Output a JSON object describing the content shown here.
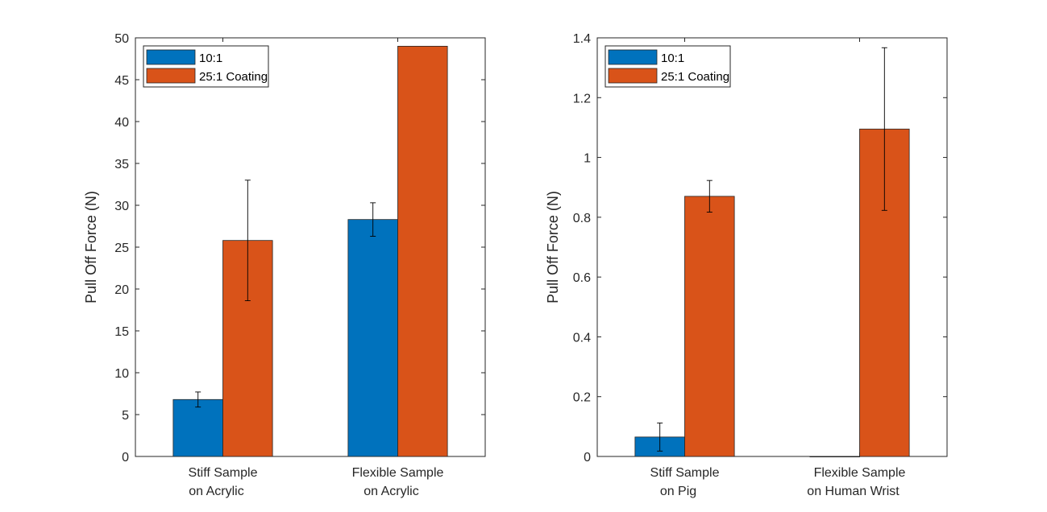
{
  "chart_data": [
    {
      "type": "bar",
      "title": "",
      "xlabel": "",
      "ylabel": "Pull Off Force (N)",
      "ylim": [
        0,
        50
      ],
      "yticks": [
        0,
        5,
        10,
        15,
        20,
        25,
        30,
        35,
        40,
        45,
        50
      ],
      "ytick_labels": [
        "0",
        "5",
        "10",
        "15",
        "20",
        "25",
        "30",
        "35",
        "40",
        "45",
        "50"
      ],
      "categories": [
        [
          "Stiff Sample",
          "on Acrylic"
        ],
        [
          "Flexible Sample",
          "on Acrylic"
        ]
      ],
      "series": [
        {
          "name": "10:1",
          "color": "#0072BD",
          "values": [
            6.8,
            28.3
          ],
          "errors": [
            0.9,
            2.0
          ]
        },
        {
          "name": "25:1 Coating",
          "color": "#D95319",
          "values": [
            25.8,
            49.0
          ],
          "errors": [
            7.2,
            0.0
          ]
        }
      ],
      "legend": "top-left",
      "grid": false
    },
    {
      "type": "bar",
      "title": "",
      "xlabel": "",
      "ylabel": "Pull Off Force (N)",
      "ylim": [
        0,
        1.4
      ],
      "yticks": [
        0,
        0.2,
        0.4,
        0.6,
        0.8,
        1.0,
        1.2,
        1.4
      ],
      "ytick_labels": [
        "0",
        "0.2",
        "0.4",
        "0.6",
        "0.8",
        "1",
        "1.2",
        "1.4"
      ],
      "categories": [
        [
          "Stiff Sample",
          "on Pig"
        ],
        [
          "Flexible Sample",
          "on Human Wrist"
        ]
      ],
      "series": [
        {
          "name": "10:1",
          "color": "#0072BD",
          "values": [
            0.065,
            0.0
          ],
          "errors": [
            0.047,
            0.0
          ]
        },
        {
          "name": "25:1 Coating",
          "color": "#D95319",
          "values": [
            0.87,
            1.095
          ],
          "errors": [
            0.053,
            0.272
          ]
        }
      ],
      "legend": "top-left",
      "grid": false
    }
  ]
}
